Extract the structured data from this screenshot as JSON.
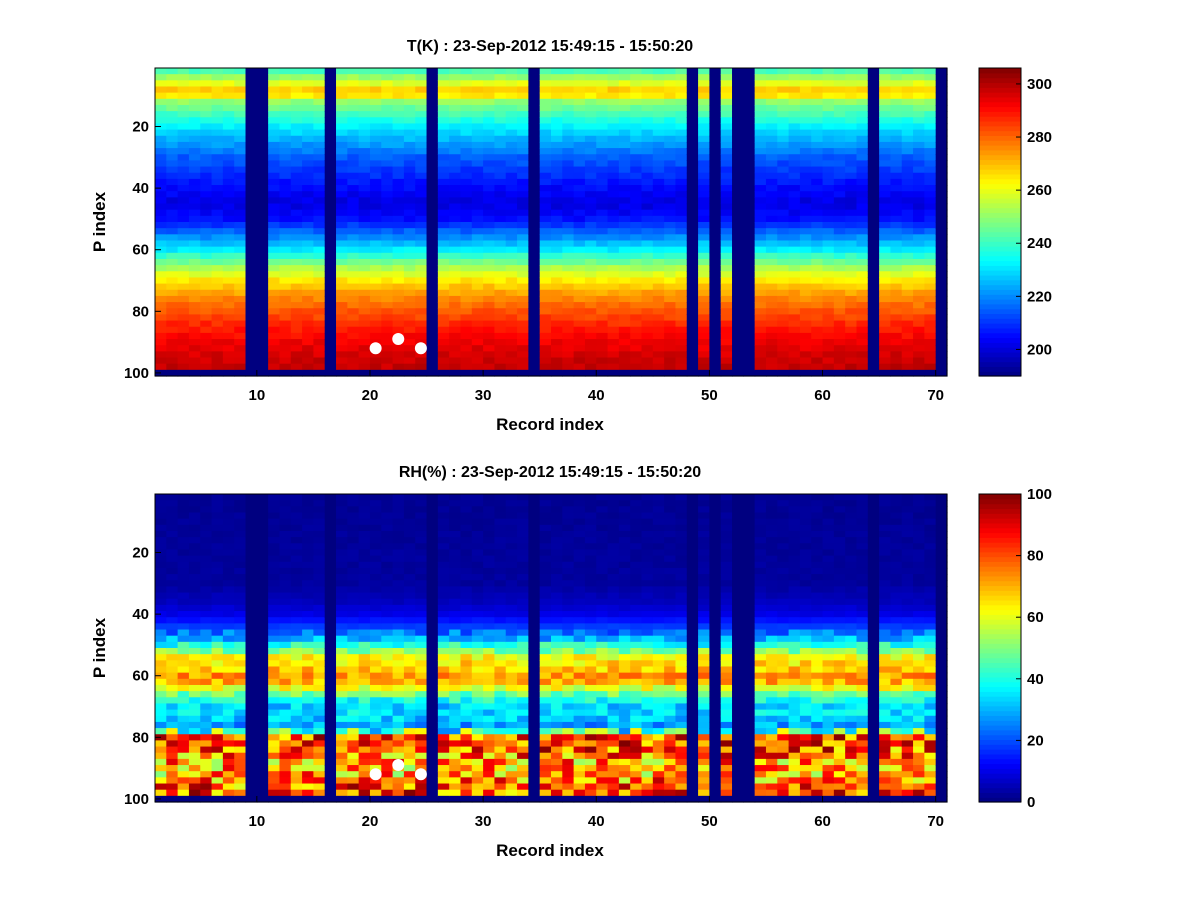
{
  "chart_data": [
    {
      "type": "heatmap",
      "title": "T(K) : 23-Sep-2012 15:49:15 - 15:50:20",
      "xlabel": "Record index",
      "ylabel": "P index",
      "x_ticks": [
        10,
        20,
        30,
        40,
        50,
        60,
        70
      ],
      "y_ticks": [
        20,
        40,
        60,
        80,
        100
      ],
      "xlim": [
        1,
        71
      ],
      "ylim": [
        1,
        101
      ],
      "y_reversed": true,
      "colormap": "jet",
      "clim": [
        190,
        306
      ],
      "colorbar_ticks": [
        200,
        220,
        240,
        260,
        280,
        300
      ],
      "missing_records": [
        9,
        10,
        16,
        25,
        34,
        48,
        50,
        52,
        53,
        64,
        70
      ],
      "valid_p_range": [
        1,
        98
      ],
      "profile_T_K": [
        {
          "p": 1,
          "value": 238
        },
        {
          "p": 5,
          "value": 255
        },
        {
          "p": 9,
          "value": 272
        },
        {
          "p": 12,
          "value": 250
        },
        {
          "p": 20,
          "value": 232
        },
        {
          "p": 30,
          "value": 215
        },
        {
          "p": 40,
          "value": 205
        },
        {
          "p": 45,
          "value": 201
        },
        {
          "p": 50,
          "value": 206
        },
        {
          "p": 55,
          "value": 218
        },
        {
          "p": 60,
          "value": 232
        },
        {
          "p": 65,
          "value": 250
        },
        {
          "p": 70,
          "value": 265
        },
        {
          "p": 75,
          "value": 275
        },
        {
          "p": 80,
          "value": 282
        },
        {
          "p": 85,
          "value": 288
        },
        {
          "p": 90,
          "value": 293
        },
        {
          "p": 95,
          "value": 297
        },
        {
          "p": 98,
          "value": 298
        }
      ],
      "markers": [
        {
          "record": 20,
          "p": 92
        },
        {
          "record": 22,
          "p": 89
        },
        {
          "record": 24,
          "p": 92
        }
      ]
    },
    {
      "type": "heatmap",
      "title": "RH(%) : 23-Sep-2012 15:49:15 - 15:50:20",
      "xlabel": "Record index",
      "ylabel": "P index",
      "x_ticks": [
        10,
        20,
        30,
        40,
        50,
        60,
        70
      ],
      "y_ticks": [
        20,
        40,
        60,
        80,
        100
      ],
      "xlim": [
        1,
        71
      ],
      "ylim": [
        1,
        101
      ],
      "y_reversed": true,
      "colormap": "jet",
      "clim": [
        0,
        100
      ],
      "colorbar_ticks": [
        0,
        20,
        40,
        60,
        80,
        100
      ],
      "missing_records": [
        9,
        10,
        16,
        25,
        34,
        48,
        50,
        52,
        53,
        64,
        70
      ],
      "valid_p_range": [
        1,
        98
      ],
      "profile_RH_pct": [
        {
          "p": 1,
          "value": 2
        },
        {
          "p": 30,
          "value": 3
        },
        {
          "p": 36,
          "value": 6
        },
        {
          "p": 40,
          "value": 10
        },
        {
          "p": 44,
          "value": 18
        },
        {
          "p": 48,
          "value": 30
        },
        {
          "p": 51,
          "value": 45
        },
        {
          "p": 54,
          "value": 62
        },
        {
          "p": 58,
          "value": 68
        },
        {
          "p": 61,
          "value": 75
        },
        {
          "p": 64,
          "value": 60
        },
        {
          "p": 67,
          "value": 42
        },
        {
          "p": 70,
          "value": 33
        },
        {
          "p": 73,
          "value": 35
        },
        {
          "p": 76,
          "value": 28
        },
        {
          "p": 78,
          "value": 45
        },
        {
          "p": 80,
          "value": 82
        },
        {
          "p": 84,
          "value": 80
        },
        {
          "p": 88,
          "value": 72
        },
        {
          "p": 92,
          "value": 70
        },
        {
          "p": 95,
          "value": 78
        },
        {
          "p": 98,
          "value": 80
        }
      ],
      "markers": [
        {
          "record": 20,
          "p": 92
        },
        {
          "record": 22,
          "p": 89
        },
        {
          "record": 24,
          "p": 92
        }
      ]
    }
  ]
}
